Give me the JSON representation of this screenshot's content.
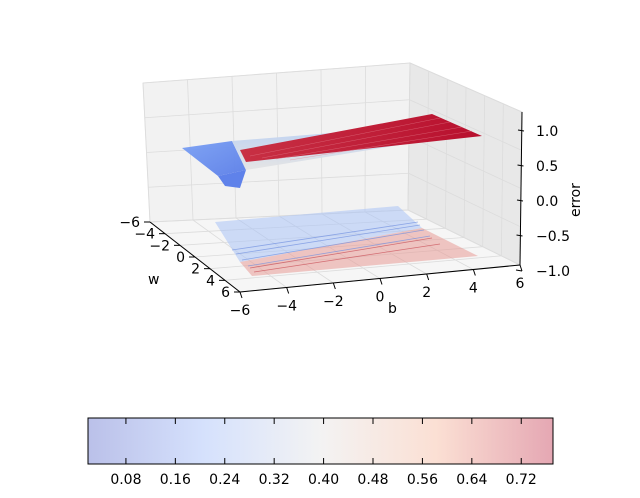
{
  "chart_data": {
    "type": "surface3d",
    "title": "",
    "axes": {
      "w": {
        "label": "w",
        "range": [
          -6,
          6
        ],
        "ticks": [
          -6,
          -4,
          -2,
          0,
          2,
          4,
          6
        ]
      },
      "b": {
        "label": "b",
        "range": [
          -6,
          6
        ],
        "ticks": [
          -6,
          -4,
          -2,
          0,
          2,
          4,
          6
        ]
      },
      "error": {
        "label": "error",
        "range": [
          -1.0,
          1.0
        ],
        "ticks": [
          "1.0",
          "0.5",
          "0.0",
          "−0.5",
          "−1.0"
        ]
      }
    },
    "grid": true,
    "colormap": "coolwarm",
    "projection": "filled contour on floor (error = -1)",
    "surface_description": {
      "low_plateau": 0.0,
      "high_plateau": 1.0,
      "transition_along": "b ≈ -w"
    },
    "colorbar": {
      "orientation": "horizontal",
      "placement": "bottom",
      "ticks": [
        "0.08",
        "0.16",
        "0.24",
        "0.32",
        "0.40",
        "0.48",
        "0.56",
        "0.64",
        "0.72"
      ]
    }
  }
}
